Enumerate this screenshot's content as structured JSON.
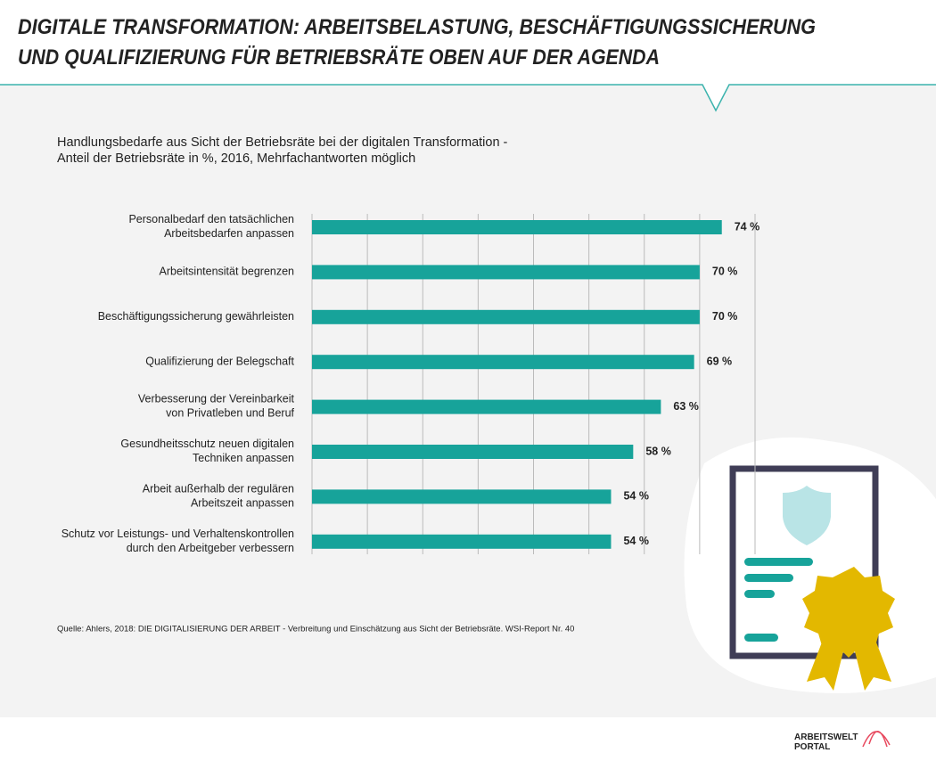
{
  "chart_data": {
    "type": "hbar",
    "title": "DIGITALE TRANSFORMATION: ARBEITSBELASTUNG, BESCHÄFTIGUNGSSICHERUNG\nUND QUALIFIZIERUNG FÜR BETRIEBSRÄTE OBEN AUF DER AGENDA",
    "subtitle": "Handlungsbedarfe aus Sicht der Betriebsräte bei der digitalen Transformation -\nAnteil der Betriebsräte in %, 2016, Mehrfachantworten möglich",
    "categories": [
      "Personalbedarf den tatsächlichen\nArbeitsbedarfen anpassen",
      "Arbeitsintensität begrenzen",
      "Beschäftigungssicherung gewährleisten",
      "Qualifizierung der Belegschaft",
      "Verbesserung der Vereinbarkeit\nvon Privatleben und Beruf",
      "Gesundheitsschutz neuen digitalen\nTechniken anpassen",
      "Arbeit außerhalb der regulären\nArbeitszeit anpassen",
      "Schutz vor Leistungs- und Verhaltenskontrollen\ndurch den Arbeitgeber verbessern"
    ],
    "values": [
      74,
      70,
      70,
      69,
      63,
      58,
      54,
      54
    ],
    "value_labels": [
      "74 %",
      "70 %",
      "70 %",
      "69 %",
      "63 %",
      "58 %",
      "54 %",
      "54 %"
    ],
    "color": "#17a39a",
    "xlim": [
      0,
      80
    ],
    "xticks": [
      0,
      10,
      20,
      30,
      40,
      50,
      60,
      70,
      80
    ],
    "grid": true,
    "source": "Quelle: Ahlers, 2018: DIE DIGITALISIERUNG DER ARBEIT - Verbreitung und Einschätzung aus Sicht der Betriebsräte. WSI-Report Nr. 40",
    "logo": "ARBEITSWELT\nPORTAL"
  }
}
